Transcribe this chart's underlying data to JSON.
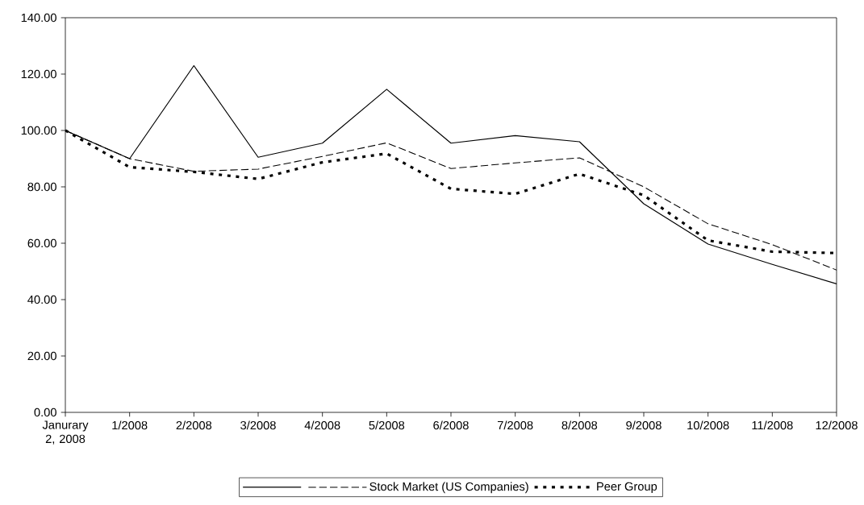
{
  "chart_data": {
    "type": "line",
    "categories": [
      "Janurary 2, 2008",
      "1/2008",
      "2/2008",
      "3/2008",
      "4/2008",
      "5/2008",
      "6/2008",
      "7/2008",
      "8/2008",
      "9/2008",
      "10/2008",
      "11/2008",
      "12/2008"
    ],
    "series": [
      {
        "color": "#000000",
        "line_style": "solid",
        "values": [
          100,
          90,
          123,
          90.5,
          95.5,
          114.6,
          95.5,
          98.2,
          96,
          74,
          59.7,
          52.5,
          45.6
        ]
      },
      {
        "name": "Stock Market (US Companies)",
        "color": "#000000",
        "line_style": "dashed",
        "values": [
          100,
          90,
          85.5,
          86.3,
          90.8,
          95.6,
          86.5,
          88.5,
          90.3,
          80,
          66.9,
          59.5,
          50.5
        ]
      },
      {
        "name": "Peer Group",
        "color": "#000000",
        "line_style": "dotted",
        "values": [
          100,
          87,
          85.3,
          82.8,
          88.7,
          91.8,
          79.3,
          77.5,
          84.6,
          77,
          61,
          57,
          56.5
        ]
      }
    ],
    "ylim": [
      0,
      140
    ],
    "yticks": [
      {
        "value": 0,
        "label": "0.00"
      },
      {
        "value": 20,
        "label": "20.00"
      },
      {
        "value": 40,
        "label": "40.00"
      },
      {
        "value": 60,
        "label": "60.00"
      },
      {
        "value": 80,
        "label": "80.00"
      },
      {
        "value": 100,
        "label": "100.00"
      },
      {
        "value": 120,
        "label": "120.00"
      },
      {
        "value": 140,
        "label": "140.00"
      }
    ],
    "grid": false,
    "legend": "bottom"
  }
}
